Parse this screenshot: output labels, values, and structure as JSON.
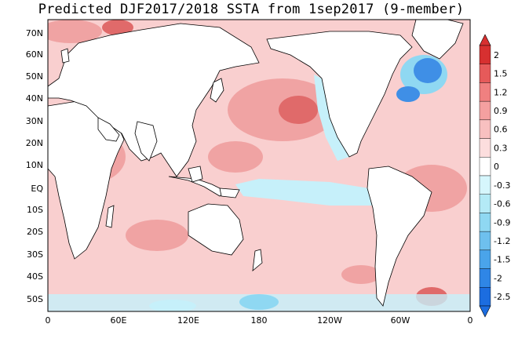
{
  "title": "Predicted DJF2017/2018 SSTA from 1sep2017 (9-member)",
  "lat_labels": [
    "70N",
    "60N",
    "50N",
    "40N",
    "30N",
    "20N",
    "10N",
    "EQ",
    "10S",
    "20S",
    "30S",
    "40S",
    "50S"
  ],
  "lon_labels": [
    "0",
    "60E",
    "120E",
    "180",
    "120W",
    "60W",
    "0"
  ],
  "colorbar": {
    "labels": [
      "2",
      "1.5",
      "1.2",
      "0.9",
      "0.6",
      "0.3",
      "0",
      "-0.3",
      "-0.6",
      "-0.9",
      "-1.2",
      "-1.5",
      "-2",
      "-2.5"
    ],
    "colors": [
      "#d73030",
      "#e65a5a",
      "#f08080",
      "#f4a0a0",
      "#f8c0c0",
      "#fcdede",
      "#ffffff",
      "#d6f6fc",
      "#b4eaf6",
      "#8fd8f2",
      "#6ec0ee",
      "#4aa4ea",
      "#2f86e6",
      "#1c6de0"
    ]
  },
  "anomaly_colors": {
    "strong_warm": "#e06a6a",
    "moderate_warm": "#f0a3a3",
    "weak_warm": "#f9cfcf",
    "weak_cool": "#c6f0fa",
    "moderate_cool": "#8fd8f2",
    "strong_cool": "#3f8fe6"
  },
  "land_color": "#ffffff",
  "coastline_color": "#000000"
}
